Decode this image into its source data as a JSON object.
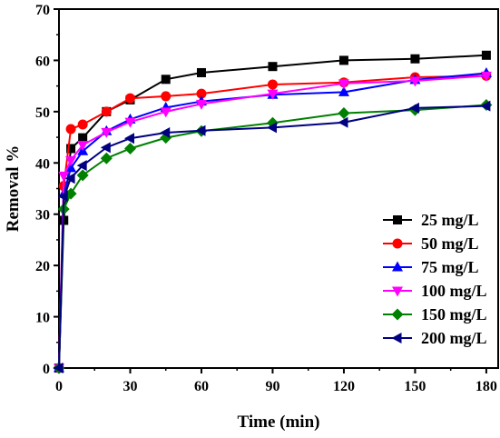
{
  "chart_data": {
    "type": "line",
    "title": "",
    "xlabel": "Time (min)",
    "ylabel": "Removal %",
    "xlim": [
      0,
      185
    ],
    "ylim": [
      0,
      70
    ],
    "xticks": [
      0,
      30,
      60,
      90,
      120,
      150,
      180
    ],
    "yticks": [
      0,
      10,
      20,
      30,
      40,
      50,
      60,
      70
    ],
    "grid": false,
    "legend_position": "right",
    "x": [
      0,
      2,
      5,
      10,
      20,
      30,
      45,
      60,
      90,
      120,
      150,
      180
    ],
    "series": [
      {
        "name": "25 mg/L",
        "color": "#000000",
        "marker": "square",
        "values": [
          0,
          28.8,
          42.8,
          44.9,
          50.0,
          52.3,
          56.3,
          57.6,
          58.8,
          60.0,
          60.3,
          61.0
        ]
      },
      {
        "name": "50 mg/L",
        "color": "#ff0000",
        "marker": "circle",
        "values": [
          0,
          35.5,
          46.6,
          47.5,
          50.0,
          52.6,
          53.0,
          53.5,
          55.3,
          55.7,
          56.7,
          57.0
        ]
      },
      {
        "name": "75 mg/L",
        "color": "#0000ff",
        "marker": "triangle-up",
        "values": [
          0,
          34.0,
          39.0,
          42.3,
          46.2,
          48.5,
          50.8,
          52.0,
          53.3,
          53.8,
          56.2,
          57.5
        ]
      },
      {
        "name": "100 mg/L",
        "color": "#ff00ff",
        "marker": "triangle-down",
        "values": [
          0,
          37.5,
          40.5,
          43.5,
          46.0,
          48.0,
          50.0,
          51.5,
          53.5,
          55.5,
          56.0,
          57.0
        ]
      },
      {
        "name": "150 mg/L",
        "color": "#008000",
        "marker": "diamond",
        "values": [
          0,
          31.0,
          34.0,
          37.6,
          40.9,
          42.8,
          44.9,
          46.2,
          47.8,
          49.7,
          50.3,
          51.3
        ]
      },
      {
        "name": "200 mg/L",
        "color": "#000080",
        "marker": "triangle-left",
        "values": [
          0,
          33.5,
          37.0,
          39.5,
          43.0,
          44.8,
          45.9,
          46.3,
          46.9,
          47.9,
          50.7,
          51.1
        ]
      }
    ]
  }
}
